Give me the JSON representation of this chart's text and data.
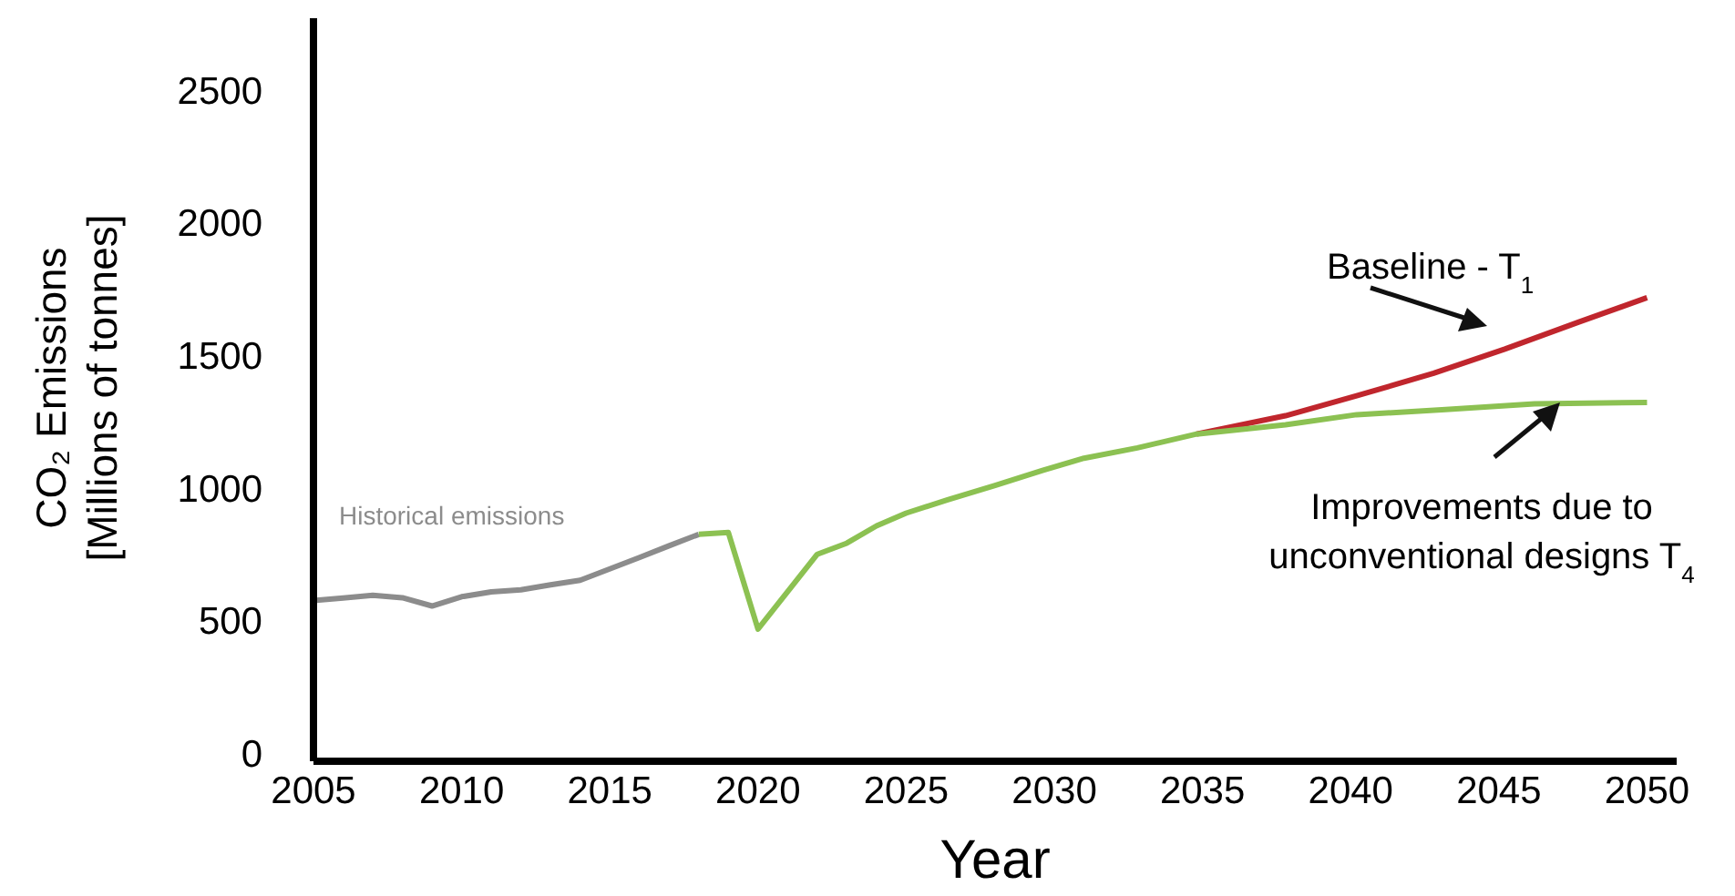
{
  "chart_data": {
    "type": "line",
    "xlabel": "Year",
    "ylabel": "CO₂ Emissions [Millions of tonnes]",
    "xlim": [
      2005,
      2051
    ],
    "xticks": [
      2005,
      2010,
      2015,
      2020,
      2025,
      2030,
      2035,
      2040,
      2045,
      2050
    ],
    "ylim": [
      -30,
      2770
    ],
    "yticks": [
      0,
      500,
      1000,
      1500,
      2000,
      2500
    ],
    "grid": false,
    "legend": false,
    "marker": "none",
    "line_style": "solid",
    "series": [
      {
        "name": "Historical emissions",
        "color": "#8c8c8c",
        "x": [
          2005,
          2006,
          2007,
          2008,
          2009,
          2010,
          2011,
          2012,
          2013,
          2014,
          2015,
          2016,
          2017,
          2018
        ],
        "values": [
          576,
          585,
          595,
          586,
          555,
          590,
          608,
          616,
          635,
          652,
          695,
          738,
          782,
          825
        ]
      },
      {
        "name": "Baseline - T$_{1}$",
        "color": "#c0262d",
        "x": [
          2034.8,
          2037.8,
          2040.2,
          2042.8,
          2045.2,
          2047.7,
          2050
        ],
        "values": [
          1203,
          1272,
          1347,
          1432,
          1523,
          1625,
          1717
        ]
      },
      {
        "name": "Improvements due to unconventional designs T$_{4}$",
        "color": "#8cc152",
        "x": [
          2018,
          2019,
          2020,
          2022,
          2023,
          2024,
          2025,
          2026.4,
          2028,
          2029.6,
          2031,
          2032.8,
          2034.8,
          2037.8,
          2040.2,
          2043.2,
          2046.2,
          2050
        ],
        "values": [
          825,
          832,
          468,
          750,
          792,
          857,
          905,
          955,
          1009,
          1066,
          1112,
          1151,
          1203,
          1238,
          1276,
          1295,
          1317,
          1322
        ]
      }
    ]
  }
}
